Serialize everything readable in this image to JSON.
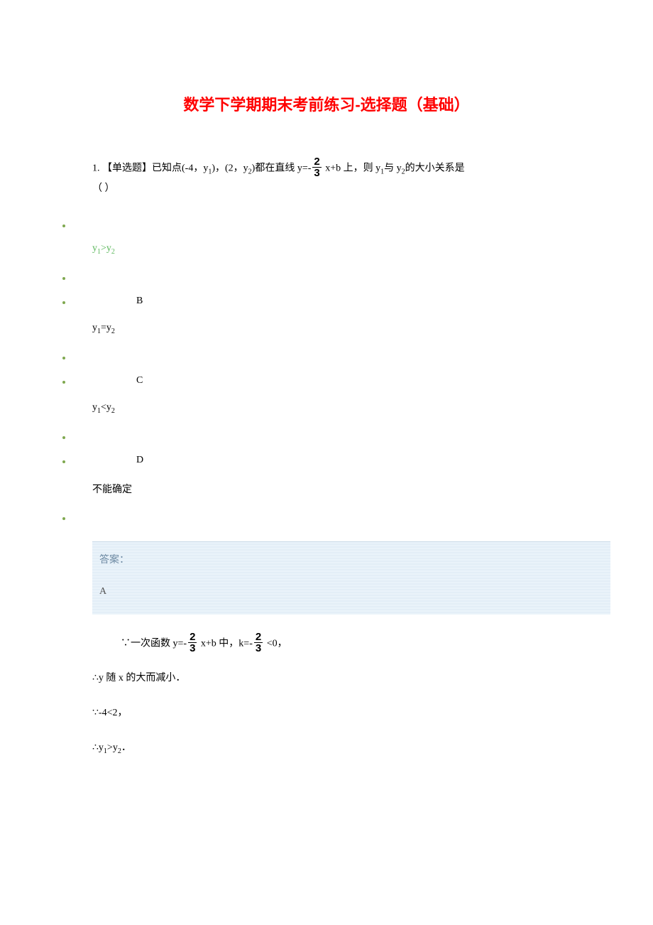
{
  "title": "数学下学期期末考前练习-选择题（基础）",
  "question": {
    "number": "1.",
    "stem_prefix": "【单选题】已知点(-4，y",
    "sub1": "1",
    "mid1": ")，(2，y",
    "sub2": "2",
    "mid2": ")都在直线 y=-",
    "frac_num": "2",
    "frac_den": "3",
    "stem_suffix1": " x+b 上，则 y",
    "sub3": "1",
    "stem_suffix2": "与 y",
    "sub4": "2",
    "stem_suffix3": "的大小关系是",
    "paren": "（        ）"
  },
  "options": [
    {
      "letter": "",
      "text": "y₁>y₂",
      "text_plain_pre": "y",
      "s1": "1",
      "mid": ">y",
      "s2": "2",
      "correct": true
    },
    {
      "letter": "B",
      "text_plain_pre": "y",
      "s1": "1",
      "mid": "=y",
      "s2": "2",
      "correct": false
    },
    {
      "letter": "C",
      "text_plain_pre": "y",
      "s1": "1",
      "mid": "<y",
      "s2": "2",
      "correct": false
    },
    {
      "letter": "D",
      "text_plain": "不能确定",
      "correct": false
    }
  ],
  "answer": {
    "label": "答案：",
    "letter": "A"
  },
  "explanation": {
    "line1_pre": "∵一次函数 y=-",
    "f1n": "2",
    "f1d": "3",
    "line1_mid": " x+b 中，k=-",
    "f2n": "2",
    "f2d": "3",
    "line1_suf": " <0，",
    "line2": "∴y 随 x 的大而减小．",
    "line3": "∵-4<2，",
    "line4_pre": "∴y",
    "l4s1": "1",
    "line4_mid": ">y",
    "l4s2": "2",
    "line4_suf": "．"
  },
  "colors": {
    "title": "#ff0000",
    "bullet": "#7fa84f",
    "correct": "#5cb85c",
    "answer_bg": "#e8f1f9",
    "answer_text": "#6d8aa3"
  }
}
